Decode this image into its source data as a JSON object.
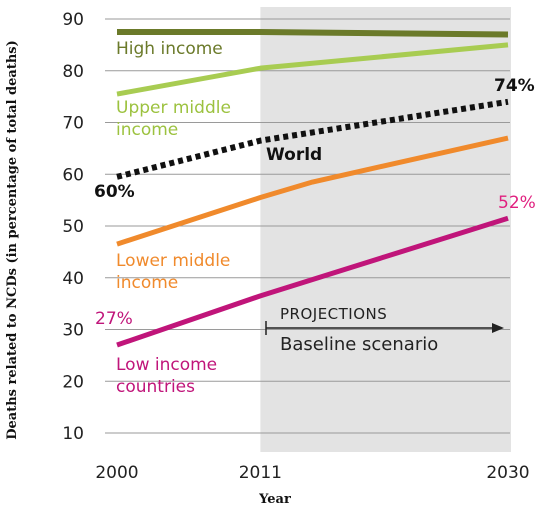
{
  "chart_data": {
    "type": "line",
    "xlabel": "Year",
    "ylabel": "Deaths related to NCDs (in percentage of total deaths)",
    "x_ticks": [
      2000,
      2011,
      2030
    ],
    "y_ticks": [
      10,
      20,
      30,
      40,
      50,
      60,
      70,
      80,
      90
    ],
    "xlim": [
      2000,
      2030
    ],
    "ylim": [
      5,
      92
    ],
    "grid": "horizontal",
    "projection_region": {
      "start": 2011,
      "end": 2030,
      "label_top": "PROJECTIONS",
      "label_bottom": "Baseline scenario"
    },
    "series": [
      {
        "name": "High income",
        "label_lines": [
          "High income"
        ],
        "color": "#6b7a2a",
        "style": "solid",
        "x": [
          2000,
          2011,
          2030
        ],
        "values": [
          87.5,
          87.5,
          87
        ]
      },
      {
        "name": "Upper middle income",
        "label_lines": [
          "Upper middle",
          "income"
        ],
        "color": "#a8cc52",
        "style": "solid",
        "x": [
          2000,
          2011,
          2030
        ],
        "values": [
          75.5,
          80.5,
          85
        ]
      },
      {
        "name": "World",
        "label_lines": [
          "World"
        ],
        "color": "#111111",
        "style": "dotted",
        "x": [
          2000,
          2011,
          2030
        ],
        "values": [
          59.5,
          66.5,
          74
        ],
        "start_label": "60%",
        "end_label": "74%"
      },
      {
        "name": "Lower middle income",
        "label_lines": [
          "Lower middle",
          "income"
        ],
        "color": "#f08a2c",
        "style": "solid",
        "x": [
          2000,
          2011,
          2015,
          2030
        ],
        "values": [
          46.5,
          55.5,
          58.5,
          67
        ]
      },
      {
        "name": "Low income countries",
        "label_lines": [
          "Low income",
          "countries"
        ],
        "color": "#c0157a",
        "style": "solid",
        "x": [
          2000,
          2011,
          2030
        ],
        "values": [
          27,
          36.5,
          51.5
        ],
        "start_label": "27%",
        "end_label": "52%"
      }
    ]
  }
}
